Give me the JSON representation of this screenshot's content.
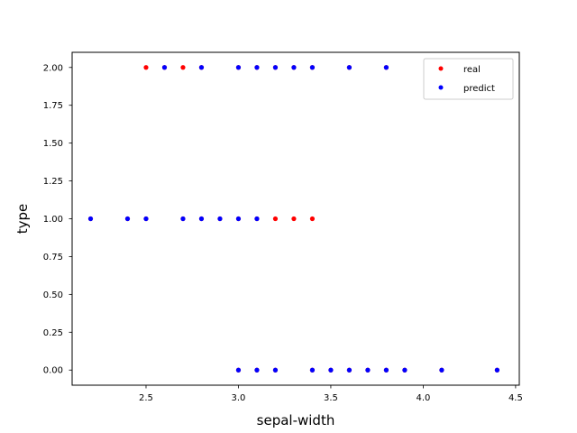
{
  "chart_data": {
    "type": "scatter",
    "title": "",
    "xlabel": "sepal-width",
    "ylabel": "type",
    "xlim": [
      2.1,
      4.52
    ],
    "ylim": [
      -0.1,
      2.1
    ],
    "xticks": [
      "2.5",
      "3.0",
      "3.5",
      "4.0",
      "4.5"
    ],
    "yticks": [
      "0.00",
      "0.25",
      "0.50",
      "0.75",
      "1.00",
      "1.25",
      "1.50",
      "1.75",
      "2.00"
    ],
    "grid": false,
    "legend_position": "top-right",
    "series": [
      {
        "name": "real",
        "color": "#ff0000",
        "points": [
          [
            2.5,
            2
          ],
          [
            2.6,
            2
          ],
          [
            2.7,
            2
          ],
          [
            2.8,
            2
          ],
          [
            3.0,
            2
          ],
          [
            3.1,
            2
          ],
          [
            3.2,
            2
          ],
          [
            3.3,
            2
          ],
          [
            3.4,
            2
          ],
          [
            3.6,
            2
          ],
          [
            3.8,
            2
          ],
          [
            2.2,
            1
          ],
          [
            2.4,
            1
          ],
          [
            2.5,
            1
          ],
          [
            2.7,
            1
          ],
          [
            2.8,
            1
          ],
          [
            2.9,
            1
          ],
          [
            3.0,
            1
          ],
          [
            3.1,
            1
          ],
          [
            3.2,
            1
          ],
          [
            3.3,
            1
          ],
          [
            3.4,
            1
          ],
          [
            3.0,
            0
          ],
          [
            3.1,
            0
          ],
          [
            3.2,
            0
          ],
          [
            3.4,
            0
          ],
          [
            3.5,
            0
          ],
          [
            3.6,
            0
          ],
          [
            3.7,
            0
          ],
          [
            3.8,
            0
          ],
          [
            3.9,
            0
          ],
          [
            4.1,
            0
          ],
          [
            4.4,
            0
          ]
        ]
      },
      {
        "name": "predict",
        "color": "#0000ff",
        "points": [
          [
            2.6,
            2
          ],
          [
            2.8,
            2
          ],
          [
            3.0,
            2
          ],
          [
            3.1,
            2
          ],
          [
            3.2,
            2
          ],
          [
            3.3,
            2
          ],
          [
            3.4,
            2
          ],
          [
            3.6,
            2
          ],
          [
            3.8,
            2
          ],
          [
            2.2,
            1
          ],
          [
            2.4,
            1
          ],
          [
            2.5,
            1
          ],
          [
            2.7,
            1
          ],
          [
            2.8,
            1
          ],
          [
            2.9,
            1
          ],
          [
            3.0,
            1
          ],
          [
            3.1,
            1
          ],
          [
            3.0,
            0
          ],
          [
            3.1,
            0
          ],
          [
            3.2,
            0
          ],
          [
            3.4,
            0
          ],
          [
            3.5,
            0
          ],
          [
            3.6,
            0
          ],
          [
            3.7,
            0
          ],
          [
            3.8,
            0
          ],
          [
            3.9,
            0
          ],
          [
            4.1,
            0
          ],
          [
            4.4,
            0
          ]
        ]
      }
    ]
  }
}
